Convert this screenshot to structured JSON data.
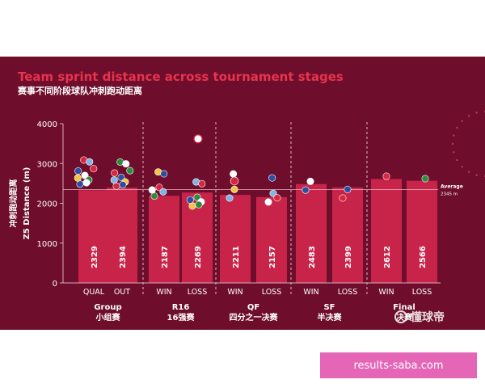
{
  "title": "Team sprint distance across tournament stages",
  "subtitle": "赛事不同阶段球队冲刺跑动距离",
  "watermark": "懂球帝",
  "link_text": "results-saba.com",
  "colors": {
    "background": "#6e0e2c",
    "bar": "#c8244a",
    "accent": "#e8334d",
    "link_badge": "#e565b7"
  },
  "chart_data": {
    "type": "bar",
    "ylabel_cn": "冲刺跑动距离",
    "ylabel": "Z5 Distance (m)",
    "ylim": [
      0,
      4000
    ],
    "yticks": [
      0,
      1000,
      2000,
      3000,
      4000
    ],
    "categories": [
      "QUAL",
      "OUT",
      "WIN",
      "LOSS",
      "WIN",
      "LOSS",
      "WIN",
      "LOSS",
      "WIN",
      "LOSS"
    ],
    "values": [
      2329,
      2394,
      2187,
      2269,
      2211,
      2157,
      2483,
      2399,
      2612,
      2566
    ],
    "groups": [
      {
        "label": "Group",
        "label_cn": "小组赛",
        "span": [
          0,
          1
        ]
      },
      {
        "label": "R16",
        "label_cn": "16强赛",
        "span": [
          2,
          3
        ]
      },
      {
        "label": "QF",
        "label_cn": "四分之一决赛",
        "span": [
          4,
          5
        ]
      },
      {
        "label": "SF",
        "label_cn": "半决赛",
        "span": [
          6,
          7
        ]
      },
      {
        "label": "Final",
        "label_cn": "决赛",
        "span": [
          8,
          9
        ]
      }
    ],
    "average": {
      "label": "Average",
      "value_label": "2345 m",
      "value": 2345
    },
    "grid": false
  }
}
